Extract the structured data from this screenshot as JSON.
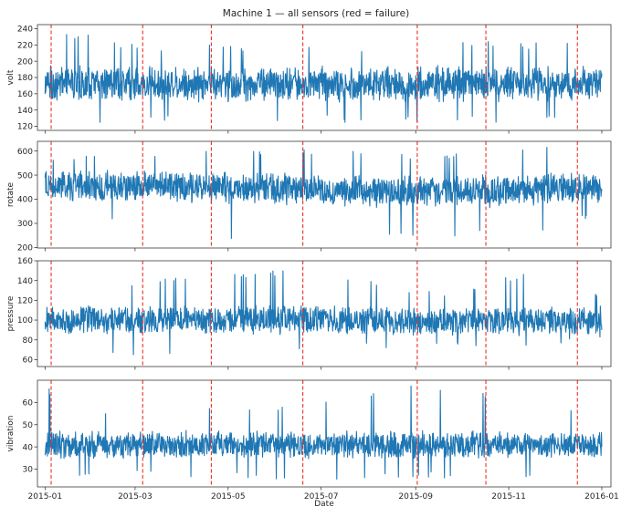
{
  "chart_data": {
    "type": "line",
    "title": "Machine 1 — all sensors (red = failure)",
    "xlabel": "Date",
    "x_range": [
      "2014-12-27",
      "2016-01-07"
    ],
    "x_data_range": [
      "2015-01-01",
      "2016-01-01"
    ],
    "x_ticks": [
      {
        "date": "2015-01-01",
        "label": "2015-01"
      },
      {
        "date": "2015-03-01",
        "label": "2015-03"
      },
      {
        "date": "2015-05-01",
        "label": "2015-05"
      },
      {
        "date": "2015-07-01",
        "label": "2015-07"
      },
      {
        "date": "2015-09-01",
        "label": "2015-09"
      },
      {
        "date": "2015-11-01",
        "label": "2015-11"
      },
      {
        "date": "2016-01-01",
        "label": "2016-01"
      }
    ],
    "failure_dates": [
      "2015-01-05",
      "2015-03-06",
      "2015-04-20",
      "2015-06-19",
      "2015-09-02",
      "2015-10-17",
      "2015-12-16"
    ],
    "failure_color": "#e8322a",
    "line_color": "#1f77b4",
    "grid": false,
    "panels": [
      {
        "ylabel": "volt",
        "ylim": [
          115,
          245
        ],
        "yticks": [
          120,
          140,
          160,
          180,
          200,
          220,
          240
        ],
        "band_center": [
          [
            0,
            172
          ],
          [
            1,
            172
          ]
        ],
        "band_half": 18,
        "spike_max": [
          [
            0,
            235
          ],
          [
            0.04,
            238
          ],
          [
            0.15,
            222
          ],
          [
            0.45,
            218
          ],
          [
            0.78,
            225
          ],
          [
            0.95,
            222
          ],
          [
            1,
            210
          ]
        ],
        "spike_min": [
          [
            0,
            128
          ],
          [
            0.04,
            122
          ],
          [
            0.3,
            128
          ],
          [
            0.5,
            125
          ],
          [
            0.8,
            124
          ],
          [
            1,
            125
          ]
        ]
      },
      {
        "ylabel": "rotate",
        "ylim": [
          198,
          640
        ],
        "yticks": [
          200,
          300,
          400,
          500,
          600
        ],
        "band_center": [
          [
            0,
            450
          ],
          [
            0.2,
            455
          ],
          [
            0.3,
            450
          ],
          [
            0.5,
            440
          ],
          [
            0.7,
            430
          ],
          [
            1,
            445
          ]
        ],
        "band_half": 55,
        "spike_max": [
          [
            0,
            585
          ],
          [
            0.2,
            600
          ],
          [
            0.3,
            615
          ],
          [
            0.5,
            605
          ],
          [
            0.75,
            590
          ],
          [
            0.9,
            620
          ],
          [
            1,
            625
          ]
        ],
        "spike_min": [
          [
            0,
            320
          ],
          [
            0.18,
            300
          ],
          [
            0.3,
            212
          ],
          [
            0.5,
            255
          ],
          [
            0.66,
            232
          ],
          [
            0.75,
            250
          ],
          [
            0.85,
            240
          ],
          [
            1,
            330
          ]
        ]
      },
      {
        "ylabel": "pressure",
        "ylim": [
          53,
          160
        ],
        "yticks": [
          60,
          80,
          100,
          120,
          140,
          160
        ],
        "band_center": [
          [
            0,
            100
          ],
          [
            0.5,
            101
          ],
          [
            0.7,
            98
          ],
          [
            1,
            100
          ]
        ],
        "band_half": 12,
        "spike_max": [
          [
            0,
            128
          ],
          [
            0.3,
            148
          ],
          [
            0.42,
            150
          ],
          [
            0.46,
            153
          ],
          [
            0.7,
            128
          ],
          [
            0.9,
            152
          ],
          [
            1,
            128
          ]
        ],
        "spike_min": [
          [
            0,
            74
          ],
          [
            0.1,
            62
          ],
          [
            0.3,
            68
          ],
          [
            0.5,
            70
          ],
          [
            0.75,
            72
          ],
          [
            1,
            76
          ]
        ]
      },
      {
        "ylabel": "vibration",
        "ylim": [
          22,
          70
        ],
        "yticks": [
          30,
          40,
          50,
          60
        ],
        "band_center": [
          [
            0,
            41
          ],
          [
            1,
            41
          ]
        ],
        "band_half": 5,
        "spike_max": [
          [
            0,
            67
          ],
          [
            0.1,
            57
          ],
          [
            0.4,
            58
          ],
          [
            0.5,
            60
          ],
          [
            0.66,
            68
          ],
          [
            0.9,
            62
          ],
          [
            1,
            55
          ]
        ],
        "spike_min": [
          [
            0,
            27
          ],
          [
            0.5,
            25
          ],
          [
            1,
            27
          ]
        ]
      }
    ]
  }
}
